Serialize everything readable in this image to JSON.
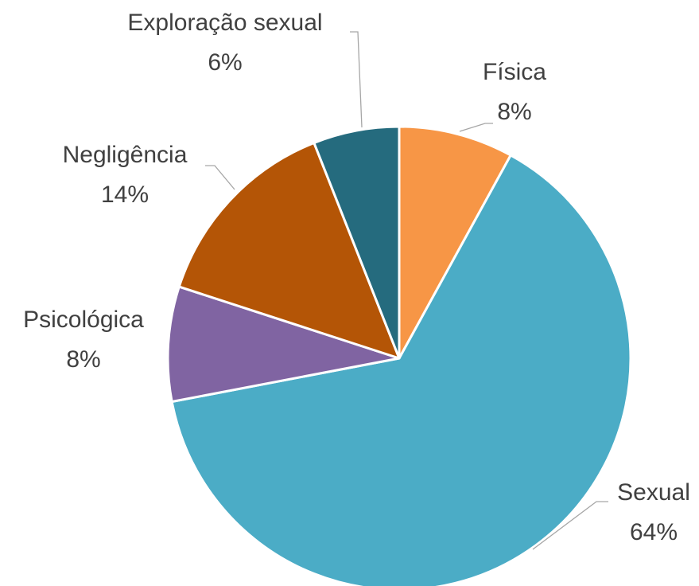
{
  "chart_data": {
    "type": "pie",
    "categories": [
      "Física",
      "Sexual",
      "Psicológica",
      "Negligência",
      "Exploração sexual"
    ],
    "values": [
      8,
      64,
      8,
      14,
      6
    ],
    "value_labels": [
      "8%",
      "64%",
      "8%",
      "14%",
      "6%"
    ],
    "colors": [
      "#f79646",
      "#4bacc6",
      "#8064a2",
      "#b45506",
      "#256b7e"
    ]
  }
}
